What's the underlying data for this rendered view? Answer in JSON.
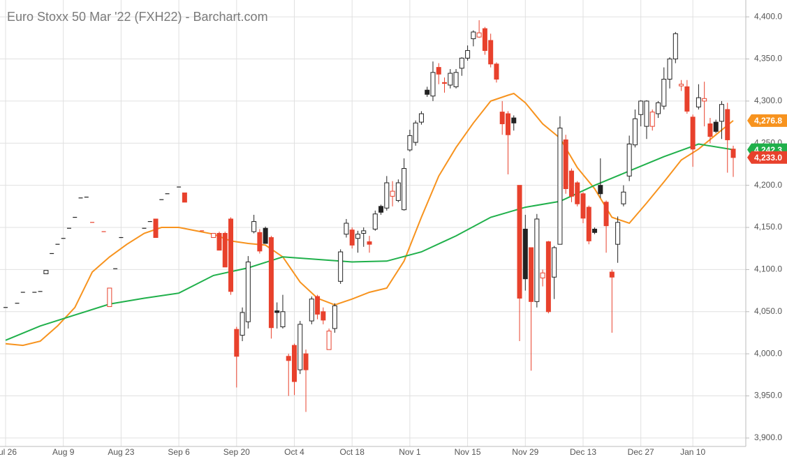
{
  "chart_data": {
    "type": "candlestick",
    "title": "Euro Stoxx 50 Mar '22 (FXH22) - Barchart.com",
    "up_color": "#222222",
    "down_color": "#e8412c",
    "grid": true,
    "ylim": [
      3890,
      4420
    ],
    "yticks": [
      {
        "value": 3900,
        "label": "3,900.0"
      },
      {
        "value": 3950,
        "label": "3,950.0"
      },
      {
        "value": 4000,
        "label": "4,000.0"
      },
      {
        "value": 4050,
        "label": "4,050.0"
      },
      {
        "value": 4100,
        "label": "4,100.0"
      },
      {
        "value": 4150,
        "label": "4,150.0"
      },
      {
        "value": 4200,
        "label": "4,200.0"
      },
      {
        "value": 4250,
        "label": "4,250.0"
      },
      {
        "value": 4300,
        "label": "4,300.0"
      },
      {
        "value": 4350,
        "label": "4,350.0"
      },
      {
        "value": 4400,
        "label": "4,400.0"
      }
    ],
    "xticks": [
      {
        "value": 0,
        "label": "Jul 26"
      },
      {
        "value": 10,
        "label": "Aug 9"
      },
      {
        "value": 20,
        "label": "Aug 23"
      },
      {
        "value": 30,
        "label": "Sep 6"
      },
      {
        "value": 40,
        "label": "Sep 20"
      },
      {
        "value": 50,
        "label": "Oct 4"
      },
      {
        "value": 60,
        "label": "Oct 18"
      },
      {
        "value": 70,
        "label": "Nov 1"
      },
      {
        "value": 80,
        "label": "Nov 15"
      },
      {
        "value": 90,
        "label": "Nov 29"
      },
      {
        "value": 100,
        "label": "Dec 13"
      },
      {
        "value": 110,
        "label": "Dec 27"
      },
      {
        "value": 119,
        "label": "Jan 10"
      }
    ],
    "open": [
      4055,
      null,
      4060,
      4073,
      null,
      4073,
      4074,
      4095,
      4119,
      4130,
      4137,
      4149,
      4162,
      4185,
      4186,
      4156,
      null,
      4145,
      4056,
      4101,
      4138,
      null,
      null,
      null,
      4149,
      4157,
      4160,
      4183,
      4190,
      null,
      4198,
      4191,
      null,
      null,
      4146,
      null,
      4138,
      4143,
      4143,
      4160,
      4029,
      4022,
      4038,
      4145,
      4144,
      4149,
      4138,
      4051,
      4032,
      3997,
      4010,
      3981,
      4000,
      4039,
      4068,
      4050,
      4005,
      4030,
      4086,
      4142,
      4147,
      4137,
      4143,
      4133,
      4148,
      4175,
      4173,
      4187,
      4182,
      4171,
      4242,
      4251,
      4275,
      4313,
      4306,
      4340,
      4322,
      4319,
      4317,
      4339,
      4351,
      4374,
      4376,
      4386,
      4372,
      4344,
      4287,
      4285,
      4280,
      4200,
      4148,
      4126,
      4062,
      4090,
      4133,
      4091,
      4130,
      4254,
      4217,
      4203,
      4190,
      4174,
      4148,
      4200,
      4180,
      4097,
      4130,
      4178,
      4211,
      4248,
      4284,
      4270,
      4270,
      4285,
      4294,
      4326,
      4350,
      4318,
      4317,
      4281,
      4293,
      4300,
      4273,
      4275,
      4276,
      4290,
      4243
    ],
    "high": [
      4055,
      null,
      4060,
      4073,
      null,
      4073,
      4074,
      4099,
      4119,
      4130,
      4137,
      4149,
      4162,
      4185,
      4186,
      4156,
      null,
      4145,
      4078,
      4101,
      4138,
      null,
      null,
      null,
      4149,
      4157,
      4160,
      4183,
      4190,
      null,
      4198,
      4191,
      null,
      null,
      4146,
      null,
      4143,
      4145,
      4145,
      4162,
      4032,
      4055,
      4116,
      4165,
      4148,
      4151,
      4140,
      4061,
      4070,
      4000,
      4012,
      4039,
      4005,
      4068,
      4070,
      4055,
      4030,
      4060,
      4124,
      4160,
      4150,
      4146,
      4150,
      4140,
      4170,
      4177,
      4211,
      4205,
      4207,
      4232,
      4266,
      4277,
      4288,
      4317,
      4347,
      4345,
      4328,
      4338,
      4338,
      4352,
      4366,
      4384,
      4396,
      4388,
      4380,
      4346,
      4300,
      4288,
      4283,
      4200,
      4165,
      4126,
      4166,
      4100,
      4134,
      4128,
      4282,
      4260,
      4220,
      4205,
      4192,
      4176,
      4150,
      4232,
      4182,
      4100,
      4163,
      4200,
      4259,
      4290,
      4301,
      4301,
      4290,
      4300,
      4340,
      4352,
      4382,
      4325,
      4325,
      4284,
      4320,
      4323,
      4280,
      4278,
      4300,
      4298,
      4247
    ],
    "low": [
      4055,
      null,
      4060,
      4073,
      null,
      4073,
      4074,
      4095,
      4119,
      4130,
      4137,
      4149,
      4162,
      4185,
      4186,
      4156,
      null,
      4145,
      4056,
      4101,
      4138,
      null,
      null,
      null,
      4149,
      4157,
      4138,
      4183,
      4190,
      null,
      4198,
      4180,
      null,
      null,
      4146,
      null,
      4138,
      4123,
      4103,
      4070,
      3960,
      4015,
      4030,
      4143,
      4119,
      4131,
      4018,
      4030,
      4030,
      3950,
      3951,
      3976,
      3931,
      4035,
      4041,
      4035,
      4005,
      4025,
      4083,
      4138,
      4125,
      4120,
      4127,
      4120,
      4146,
      4165,
      4170,
      4175,
      4180,
      4170,
      4240,
      4247,
      4272,
      4305,
      4300,
      4320,
      4310,
      4315,
      4315,
      4330,
      4348,
      4365,
      4375,
      4355,
      4340,
      4322,
      4260,
      4213,
      4265,
      4015,
      4075,
      3980,
      4055,
      4080,
      4048,
      4065,
      4130,
      4190,
      4180,
      4175,
      4155,
      4130,
      4142,
      4185,
      4120,
      4025,
      4108,
      4175,
      4205,
      4245,
      4270,
      4255,
      4265,
      4280,
      4290,
      4315,
      4345,
      4312,
      4285,
      4222,
      4290,
      4270,
      4250,
      4262,
      4255,
      4215,
      4210
    ],
    "close": [
      4055,
      null,
      4060,
      4073,
      null,
      4073,
      4074,
      4099,
      4119,
      4130,
      4137,
      4149,
      4162,
      4185,
      4186,
      4156,
      null,
      4145,
      4078,
      4101,
      4138,
      null,
      null,
      null,
      4149,
      4157,
      4138,
      4183,
      4190,
      null,
      4198,
      4180,
      null,
      null,
      4146,
      null,
      4143,
      4123,
      4103,
      4074,
      3997,
      4049,
      4109,
      4157,
      4122,
      4131,
      4031,
      4049,
      4050,
      3992,
      3967,
      4035,
      3981,
      4065,
      4047,
      4040,
      4027,
      4057,
      4121,
      4155,
      4129,
      4142,
      4146,
      4130,
      4166,
      4168,
      4203,
      4193,
      4203,
      4220,
      4259,
      4274,
      4285,
      4308,
      4334,
      4332,
      4321,
      4333,
      4334,
      4351,
      4360,
      4382,
      4381,
      4360,
      4344,
      4326,
      4273,
      4260,
      4274,
      4066,
      4089,
      4062,
      4160,
      4096,
      4050,
      4126,
      4268,
      4196,
      4187,
      4178,
      4161,
      4134,
      4144,
      4190,
      4152,
      4091,
      4156,
      4192,
      4249,
      4279,
      4300,
      4300,
      4287,
      4298,
      4326,
      4350,
      4380,
      4320,
      4288,
      4243,
      4304,
      4303,
      4258,
      4264,
      4296,
      4254,
      4233
    ],
    "last_close_label": "4,233.0",
    "ma": [
      {
        "color": "#f7931e",
        "last_label": "4,276.8",
        "x": [
          0,
          3,
          6,
          9,
          12,
          15,
          18,
          21,
          24,
          27,
          30,
          33,
          36,
          39,
          42,
          45,
          48,
          51,
          54,
          57,
          60,
          63,
          66,
          69,
          72,
          75,
          78,
          81,
          84,
          87,
          88,
          90,
          93,
          96,
          99,
          102,
          105,
          108,
          111,
          114,
          117,
          120,
          123,
          126
        ],
        "values": [
          4012,
          4010,
          4015,
          4033,
          4055,
          4097,
          4115,
          4130,
          4143,
          4150,
          4150,
          4146,
          4142,
          4134,
          4131,
          4129,
          4115,
          4085,
          4066,
          4058,
          4065,
          4073,
          4078,
          4110,
          4162,
          4211,
          4245,
          4274,
          4300,
          4307,
          4309,
          4298,
          4273,
          4256,
          4221,
          4196,
          4162,
          4155,
          4179,
          4204,
          4230,
          4243,
          4260,
          4276.8
        ]
      },
      {
        "color": "#20b04b",
        "last_label": "4,242.3",
        "x": [
          0,
          6,
          12,
          18,
          24,
          30,
          36,
          42,
          48,
          54,
          60,
          66,
          72,
          78,
          84,
          90,
          96,
          102,
          108,
          114,
          120,
          126
        ],
        "values": [
          4016,
          4033,
          4046,
          4059,
          4066,
          4072,
          4093,
          4102,
          4115,
          4112,
          4109,
          4110,
          4121,
          4140,
          4162,
          4174,
          4181,
          4200,
          4217,
          4234,
          4249,
          4242.3
        ]
      }
    ]
  }
}
